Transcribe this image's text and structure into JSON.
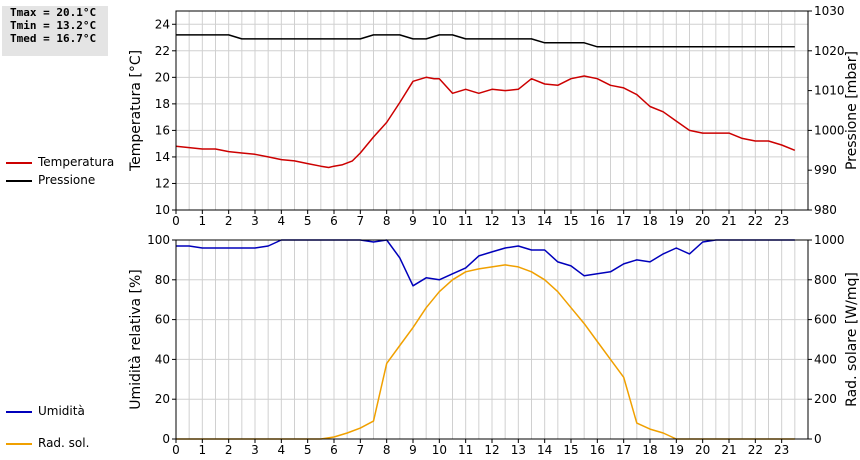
{
  "stats": {
    "tmax": "Tmax = 20.1°C",
    "tmin": "Tmin = 13.2°C",
    "tmed": "Tmed = 16.7°C"
  },
  "legend": {
    "top": [
      {
        "label": "Temperatura",
        "color": "#cc0000"
      },
      {
        "label": "Pressione",
        "color": "#000000"
      }
    ],
    "bottom": [
      {
        "label": "Umidità",
        "color": "#0000bb"
      },
      {
        "label": "Rad. sol.",
        "color": "#f0a000"
      }
    ]
  },
  "chart_data": [
    {
      "type": "line",
      "xlim": [
        0,
        24
      ],
      "x_ticks": [
        "0",
        "1",
        "2",
        "3",
        "4",
        "5",
        "6",
        "7",
        "8",
        "9",
        "10",
        "11",
        "12",
        "13",
        "14",
        "15",
        "16",
        "17",
        "18",
        "19",
        "20",
        "21",
        "22",
        "23"
      ],
      "ylabel_left": "Temperatura [°C]",
      "ylabel_right": "Pressione [mbar]",
      "ylim_left": [
        10,
        25
      ],
      "ylim_right": [
        980,
        1030
      ],
      "y_ticks_left": [
        "10",
        "12",
        "14",
        "16",
        "18",
        "20",
        "22",
        "24"
      ],
      "y_ticks_right": [
        "980",
        "990",
        "1000",
        "1010",
        "1020",
        "1030"
      ],
      "grid": true,
      "series": [
        {
          "name": "Temperatura",
          "axis": "left",
          "color": "#cc0000",
          "x": [
            0,
            0.5,
            1,
            1.5,
            2,
            2.5,
            3,
            3.5,
            4,
            4.5,
            5,
            5.5,
            5.8,
            6,
            6.3,
            6.7,
            7,
            7.5,
            8,
            8.5,
            9,
            9.5,
            9.8,
            10,
            10.5,
            11,
            11.5,
            12,
            12.5,
            13,
            13.5,
            14,
            14.5,
            15,
            15.5,
            16,
            16.5,
            17,
            17.5,
            18,
            18.5,
            19,
            19.5,
            20,
            20.5,
            21,
            21.5,
            22,
            22.5,
            23,
            23.5
          ],
          "y": [
            14.8,
            14.7,
            14.6,
            14.6,
            14.4,
            14.3,
            14.2,
            14.0,
            13.8,
            13.7,
            13.5,
            13.3,
            13.2,
            13.3,
            13.4,
            13.7,
            14.3,
            15.5,
            16.6,
            18.1,
            19.7,
            20.0,
            19.9,
            19.9,
            18.8,
            19.1,
            18.8,
            19.1,
            19.0,
            19.1,
            19.9,
            19.5,
            19.4,
            19.9,
            20.1,
            19.9,
            19.4,
            19.2,
            18.7,
            17.8,
            17.4,
            16.7,
            16.0,
            15.8,
            15.8,
            15.8,
            15.4,
            15.2,
            15.2,
            14.9,
            14.5
          ]
        },
        {
          "name": "Pressione",
          "axis": "right",
          "color": "#000000",
          "x": [
            0,
            2,
            2.5,
            7,
            7.5,
            8.5,
            9,
            9.5,
            10,
            10.5,
            11,
            13.5,
            14,
            15.5,
            16,
            23.5
          ],
          "y": [
            1024,
            1024,
            1023,
            1023,
            1024,
            1024,
            1023,
            1023,
            1024,
            1024,
            1023,
            1023,
            1022,
            1022,
            1021,
            1021
          ]
        }
      ]
    },
    {
      "type": "line",
      "xlim": [
        0,
        24
      ],
      "x_ticks": [
        "0",
        "1",
        "2",
        "3",
        "4",
        "5",
        "6",
        "7",
        "8",
        "9",
        "10",
        "11",
        "12",
        "13",
        "14",
        "15",
        "16",
        "17",
        "18",
        "19",
        "20",
        "21",
        "22",
        "23"
      ],
      "ylabel_left": "Umidità relativa [%]",
      "ylabel_right": "Rad. solare [W/mq]",
      "ylim_left": [
        0,
        100
      ],
      "ylim_right": [
        0,
        1000
      ],
      "y_ticks_left": [
        "0",
        "20",
        "40",
        "60",
        "80",
        "100"
      ],
      "y_ticks_right": [
        "0",
        "200",
        "400",
        "600",
        "800",
        "1000"
      ],
      "grid": true,
      "series": [
        {
          "name": "Umidità",
          "axis": "left",
          "color": "#0000bb",
          "x": [
            0,
            0.5,
            1,
            1.5,
            2,
            2.5,
            3,
            3.5,
            4,
            4.5,
            5,
            5.5,
            6,
            6.5,
            7,
            7.5,
            8,
            8.5,
            9,
            9.5,
            10,
            10.5,
            11,
            11.5,
            12,
            12.5,
            13,
            13.5,
            14,
            14.5,
            15,
            15.5,
            16,
            16.5,
            17,
            17.5,
            18,
            18.5,
            19,
            19.5,
            20,
            20.5,
            21,
            21.5,
            22,
            22.5,
            23,
            23.5
          ],
          "y": [
            97,
            97,
            96,
            96,
            96,
            96,
            96,
            97,
            100,
            100,
            100,
            100,
            100,
            100,
            100,
            99,
            100,
            91,
            77,
            81,
            80,
            83,
            86,
            92,
            94,
            96,
            97,
            95,
            95,
            89,
            87,
            82,
            83,
            84,
            88,
            90,
            89,
            93,
            96,
            93,
            99,
            100,
            100,
            100,
            100,
            100,
            100,
            100
          ]
        },
        {
          "name": "Rad. sol.",
          "axis": "right",
          "color": "#f0a000",
          "x": [
            0,
            5.5,
            6,
            6.5,
            7,
            7.5,
            8,
            8.5,
            9,
            9.5,
            10,
            10.5,
            11,
            11.5,
            12,
            12.5,
            13,
            13.5,
            14,
            14.5,
            15,
            15.5,
            16,
            16.5,
            17,
            17.5,
            18,
            18.5,
            19,
            23.5
          ],
          "y": [
            0,
            0,
            10,
            30,
            55,
            90,
            380,
            470,
            560,
            660,
            740,
            800,
            840,
            855,
            865,
            875,
            865,
            840,
            800,
            740,
            660,
            580,
            490,
            400,
            310,
            80,
            50,
            30,
            0,
            0
          ]
        }
      ]
    }
  ]
}
